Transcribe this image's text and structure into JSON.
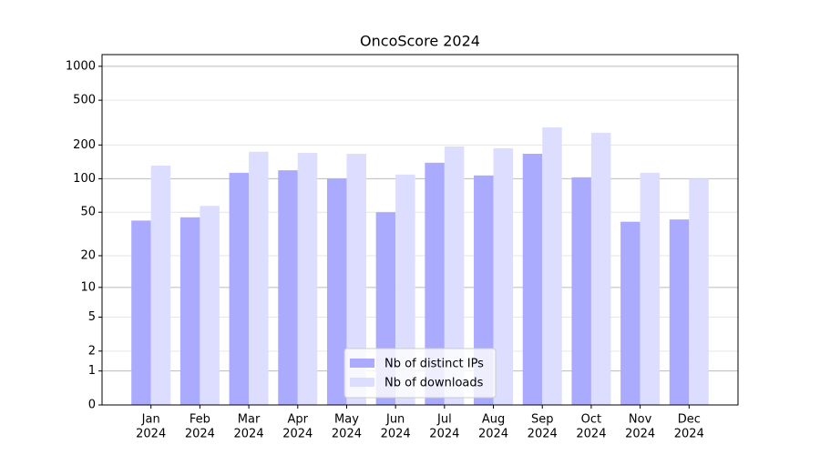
{
  "chart_data": {
    "type": "bar",
    "title": "OncoScore 2024",
    "categories": [
      [
        "Jan",
        "2024"
      ],
      [
        "Feb",
        "2024"
      ],
      [
        "Mar",
        "2024"
      ],
      [
        "Apr",
        "2024"
      ],
      [
        "May",
        "2024"
      ],
      [
        "Jun",
        "2024"
      ],
      [
        "Jul",
        "2024"
      ],
      [
        "Aug",
        "2024"
      ],
      [
        "Sep",
        "2024"
      ],
      [
        "Oct",
        "2024"
      ],
      [
        "Nov",
        "2024"
      ],
      [
        "Dec",
        "2024"
      ]
    ],
    "series": [
      {
        "name": "Nb of distinct IPs",
        "color": "#aaaaff",
        "values": [
          42,
          45,
          113,
          119,
          100,
          50,
          139,
          107,
          167,
          103,
          41,
          43
        ]
      },
      {
        "name": "Nb of downloads",
        "color": "#ddddff",
        "values": [
          131,
          57,
          174,
          170,
          167,
          109,
          194,
          187,
          287,
          257,
          113,
          100
        ]
      }
    ],
    "yscale": "log1p",
    "ylim": [
      0,
      1270
    ],
    "yticks": [
      0,
      1,
      2,
      5,
      10,
      20,
      50,
      100,
      200,
      500,
      1000
    ],
    "grid": true,
    "legend": "lower center"
  }
}
